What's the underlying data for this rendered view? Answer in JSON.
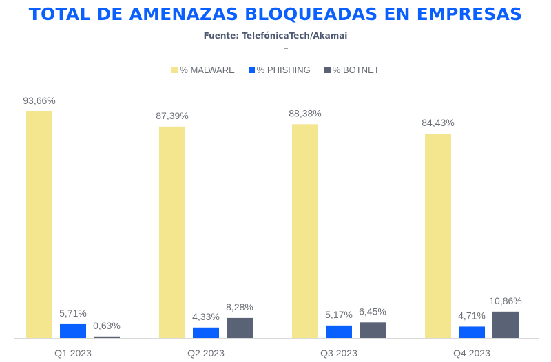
{
  "chart_data": {
    "type": "bar",
    "title": "TOTAL DE AMENAZAS BLOQUEADAS EN EMPRESAS",
    "subtitle": "Fuente: TelefónicaTech/Akamai",
    "categories": [
      "Q1 2023",
      "Q2 2023",
      "Q3 2023",
      "Q4 2023"
    ],
    "series": [
      {
        "name": "% MALWARE",
        "color": "#f4e68e",
        "values": [
          93.66,
          87.39,
          88.38,
          84.43
        ],
        "labels": [
          "93,66%",
          "87,39%",
          "88,38%",
          "84,43%"
        ]
      },
      {
        "name": "% PHISHING",
        "color": "#0a5fff",
        "values": [
          5.71,
          4.33,
          5.17,
          4.71
        ],
        "labels": [
          "5,71%",
          "4,33%",
          "5,17%",
          "4,71%"
        ]
      },
      {
        "name": "% BOTNET",
        "color": "#5a6276",
        "values": [
          0.63,
          8.28,
          6.45,
          10.86
        ],
        "labels": [
          "0,63%",
          "8,28%",
          "6,45%",
          "10,86%"
        ]
      }
    ],
    "ylim": [
      0,
      100
    ],
    "xlabel": "",
    "ylabel": "",
    "grid": false,
    "legend_position": "top-center"
  }
}
